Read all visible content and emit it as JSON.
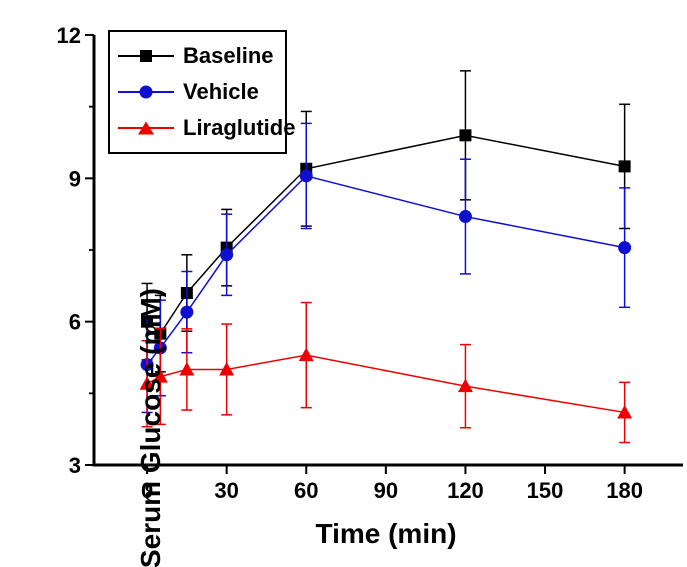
{
  "figure": {
    "background": "#ffffff"
  },
  "chart_data": {
    "type": "line",
    "title": "",
    "xlabel": "Time (min)",
    "ylabel": "Serum Glucose (mM)",
    "x": [
      0,
      5,
      15,
      30,
      60,
      120,
      180
    ],
    "xticks": [
      0,
      30,
      60,
      90,
      120,
      150,
      180
    ],
    "yticks": [
      3,
      6,
      9,
      12
    ],
    "y_minor_ticks": [
      4.5,
      7.5,
      10.5
    ],
    "xlim": [
      -20,
      202
    ],
    "ylim": [
      3,
      12
    ],
    "grid": false,
    "legend_position": "top-left",
    "axis_color": "#000000",
    "error_bars": true,
    "series": [
      {
        "name": "Baseline",
        "color": "#000000",
        "marker": "square",
        "values": [
          6.0,
          5.75,
          6.6,
          7.55,
          9.2,
          9.9,
          9.25
        ],
        "errors": [
          0.8,
          0.8,
          0.8,
          0.8,
          1.2,
          1.35,
          1.3
        ]
      },
      {
        "name": "Vehicle",
        "color": "#0f0fd0",
        "marker": "circle",
        "values": [
          5.1,
          5.45,
          6.2,
          7.4,
          9.05,
          8.2,
          7.55
        ],
        "errors": [
          1.0,
          1.0,
          0.85,
          0.85,
          1.1,
          1.2,
          1.25
        ]
      },
      {
        "name": "Liraglutide",
        "color": "#ee0000",
        "marker": "triangle",
        "values": [
          4.7,
          4.85,
          5.0,
          5.0,
          5.3,
          4.65,
          4.1
        ],
        "errors": [
          0.9,
          1.0,
          0.85,
          0.95,
          1.1,
          0.87,
          0.63
        ]
      }
    ]
  }
}
